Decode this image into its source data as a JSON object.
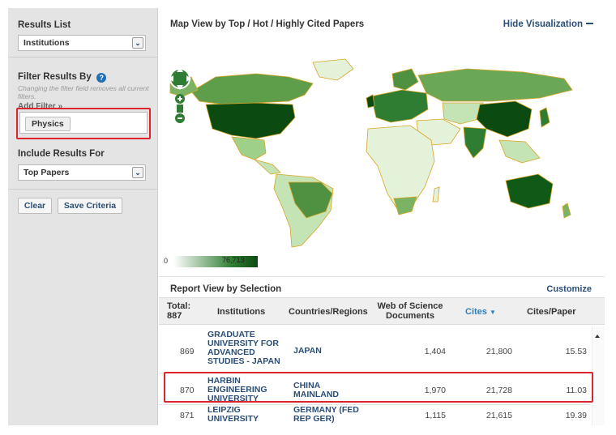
{
  "sidebar": {
    "results_list_label": "Results List",
    "results_list_value": "Institutions",
    "filter_by_label": "Filter Results By",
    "filter_note": "Changing the filter field removes all current filters.",
    "add_filter_label": "Add Filter »",
    "filter_chip": "Physics",
    "include_label": "Include Results For",
    "include_value": "Top Papers",
    "clear_label": "Clear",
    "save_label": "Save Criteria"
  },
  "map_view": {
    "title": "Map View by Top / Hot / Highly Cited Papers",
    "hide_label": "Hide Visualization",
    "legend_min": "0",
    "legend_max": "76,713"
  },
  "report": {
    "title": "Report View by Selection",
    "customize_label": "Customize",
    "total_label": "Total:",
    "total_value": "887",
    "columns": {
      "institutions": "Institutions",
      "countries": "Countries/Regions",
      "wos_docs_1": "Web of Science",
      "wos_docs_2": "Documents",
      "cites": "Cites",
      "cites_per_paper": "Cites/Paper"
    },
    "rows": [
      {
        "rank": "869",
        "institution": "GRADUATE UNIVERSITY FOR ADVANCED STUDIES - JAPAN",
        "country": "JAPAN",
        "docs": "1,404",
        "cites": "21,800",
        "cites_per_paper": "15.53"
      },
      {
        "rank": "870",
        "institution": "HARBIN ENGINEERING UNIVERSITY",
        "country": "CHINA MAINLAND",
        "docs": "1,970",
        "cites": "21,728",
        "cites_per_paper": "11.03"
      },
      {
        "rank": "871",
        "institution": "LEIPZIG UNIVERSITY",
        "country": "GERMANY (FED REP GER)",
        "docs": "1,115",
        "cites": "21,615",
        "cites_per_paper": "19.39"
      }
    ]
  },
  "colors": {
    "accent_blue": "#2b4e77",
    "highlight_red": "#d9252b",
    "map_dark_green": "#0b4b11",
    "map_light_green": "#d9efcf"
  }
}
